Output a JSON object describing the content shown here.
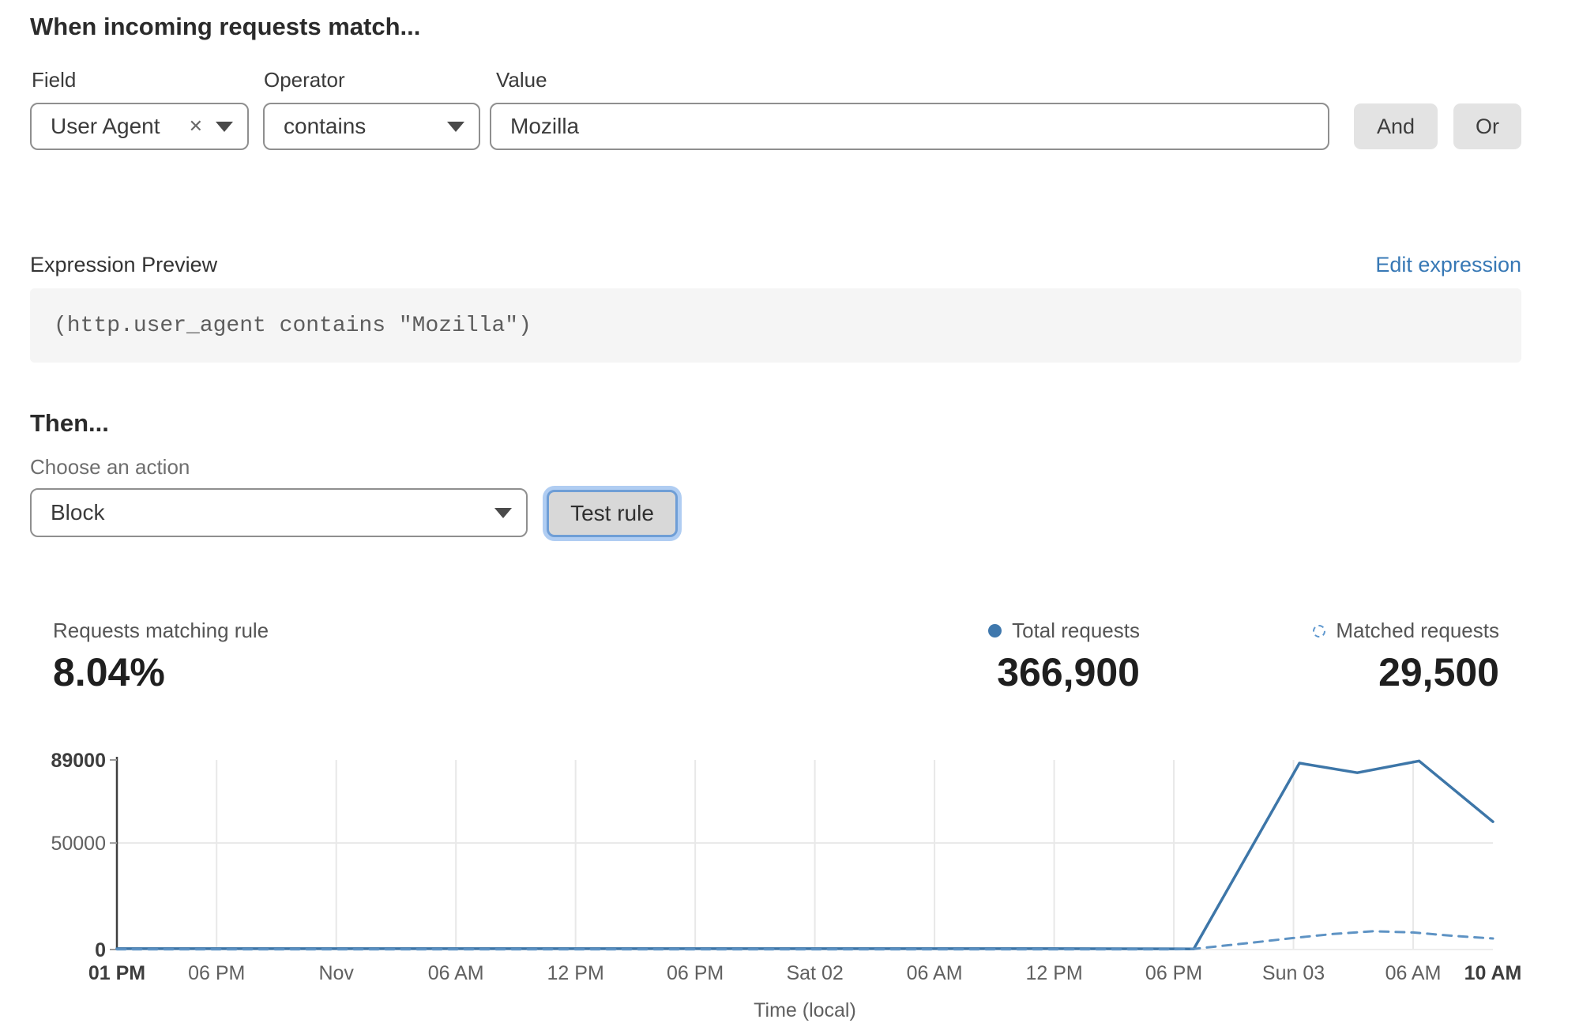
{
  "match_section": {
    "title": "When incoming requests match...",
    "field_label": "Field",
    "operator_label": "Operator",
    "value_label": "Value",
    "field_value": "User Agent",
    "operator_value": "contains",
    "value_value": "Mozilla",
    "and_label": "And",
    "or_label": "Or"
  },
  "expression": {
    "label": "Expression Preview",
    "edit_link": "Edit expression",
    "code": "(http.user_agent contains \"Mozilla\")"
  },
  "then_section": {
    "title": "Then...",
    "action_label": "Choose an action",
    "action_value": "Block",
    "test_button": "Test rule"
  },
  "stats": {
    "matching_label": "Requests matching rule",
    "matching_value": "8.04%",
    "total_label": "Total requests",
    "total_value": "366,900",
    "matched_label": "Matched requests",
    "matched_value": "29,500"
  },
  "colors": {
    "accent_blue": "#3d76a8",
    "dashed_blue": "#5e93c4",
    "legend_dot": "#3f78ad",
    "link_blue": "#3778b5",
    "focus_ring": "#b0cdf2",
    "grid_gray": "#e8e8e8",
    "axis_gray": "#3f3f3f"
  },
  "chart_data": {
    "type": "line",
    "xlabel": "Time (local)",
    "ylabel": "",
    "ylim": [
      0,
      89000
    ],
    "x_unit": "hours_from_start",
    "x_range_hours": [
      0,
      69
    ],
    "grid": {
      "vertical_at_ticks": true,
      "horizontal_at": [
        50000
      ]
    },
    "legend_position": "top-right",
    "y_ticks": [
      {
        "value": 0,
        "label": "0",
        "bold": true
      },
      {
        "value": 50000,
        "label": "50000",
        "bold": false
      },
      {
        "value": 89000,
        "label": "89000",
        "bold": true
      }
    ],
    "x_ticks": [
      {
        "h": 0,
        "label": "01 PM",
        "bold": true
      },
      {
        "h": 5,
        "label": "06 PM",
        "bold": false
      },
      {
        "h": 11,
        "label": "Nov",
        "bold": false
      },
      {
        "h": 17,
        "label": "06 AM",
        "bold": false
      },
      {
        "h": 23,
        "label": "12 PM",
        "bold": false
      },
      {
        "h": 29,
        "label": "06 PM",
        "bold": false
      },
      {
        "h": 35,
        "label": "Sat 02",
        "bold": false
      },
      {
        "h": 41,
        "label": "06 AM",
        "bold": false
      },
      {
        "h": 47,
        "label": "12 PM",
        "bold": false
      },
      {
        "h": 53,
        "label": "06 PM",
        "bold": false
      },
      {
        "h": 59,
        "label": "Sun 03",
        "bold": false
      },
      {
        "h": 65,
        "label": "06 AM",
        "bold": false
      },
      {
        "h": 69,
        "label": "10 AM",
        "bold": true
      }
    ],
    "series": [
      {
        "name": "Total requests",
        "style": "solid",
        "color": "#3d76a8",
        "points": [
          [
            0,
            400
          ],
          [
            5,
            400
          ],
          [
            11,
            400
          ],
          [
            17,
            400
          ],
          [
            23,
            400
          ],
          [
            29,
            400
          ],
          [
            35,
            400
          ],
          [
            41,
            400
          ],
          [
            47,
            400
          ],
          [
            53,
            350
          ],
          [
            54,
            250
          ],
          [
            59.3,
            87500
          ],
          [
            62.2,
            83000
          ],
          [
            65.3,
            88500
          ],
          [
            69,
            60000
          ]
        ]
      },
      {
        "name": "Matched requests",
        "style": "dashed",
        "color": "#5e93c4",
        "points": [
          [
            0,
            100
          ],
          [
            5,
            100
          ],
          [
            11,
            100
          ],
          [
            17,
            100
          ],
          [
            23,
            100
          ],
          [
            29,
            100
          ],
          [
            35,
            100
          ],
          [
            41,
            100
          ],
          [
            47,
            100
          ],
          [
            53,
            100
          ],
          [
            54,
            300
          ],
          [
            55,
            1300
          ],
          [
            57,
            3300
          ],
          [
            59,
            5400
          ],
          [
            61,
            7300
          ],
          [
            63,
            8600
          ],
          [
            65,
            8000
          ],
          [
            67,
            6400
          ],
          [
            69,
            5200
          ]
        ]
      }
    ]
  }
}
